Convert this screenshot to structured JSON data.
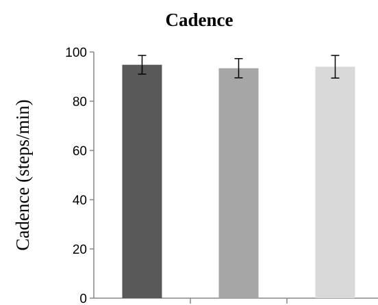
{
  "chart_data": {
    "type": "bar",
    "title": "Cadence",
    "xlabel": "",
    "ylabel": "Cadence (steps/min)",
    "ylim": [
      0,
      100
    ],
    "yticks": [
      0,
      20,
      40,
      60,
      80,
      100
    ],
    "grid": false,
    "categories": [
      "",
      "",
      ""
    ],
    "values": [
      94.8,
      93.4,
      94.0
    ],
    "error": [
      3.8,
      3.9,
      4.6
    ],
    "colors": [
      "#595959",
      "#a6a6a6",
      "#d9d9d9"
    ]
  }
}
